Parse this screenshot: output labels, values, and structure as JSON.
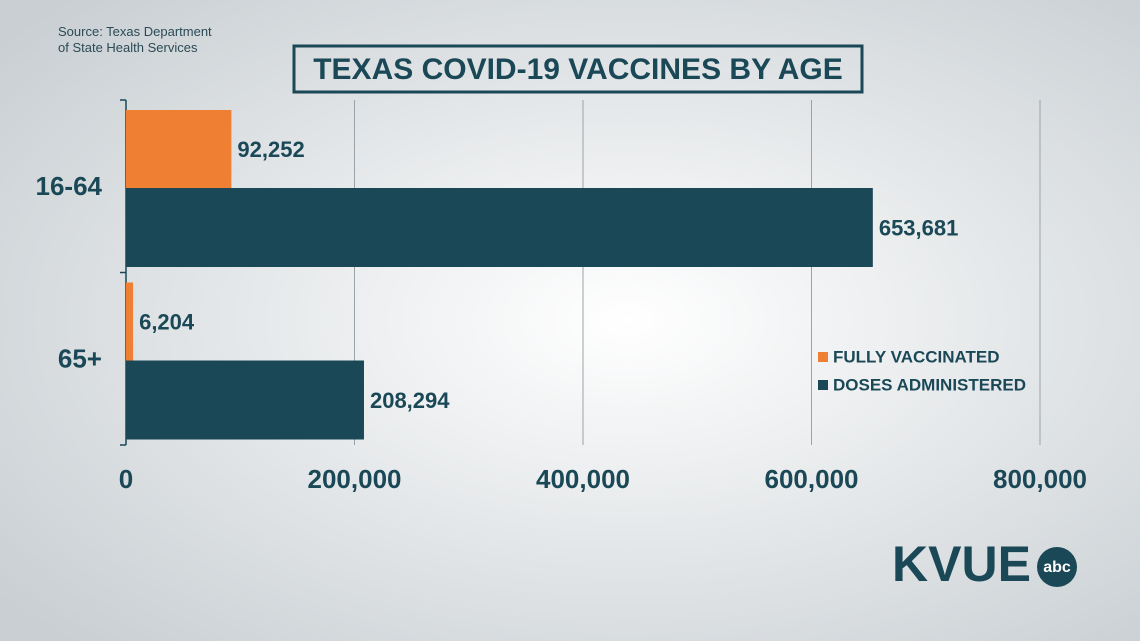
{
  "chart_data": {
    "type": "hbar",
    "title": "TEXAS COVID-19 VACCINES BY AGE",
    "source": "Source: Texas Department\nof State Health Services",
    "logo": "KVUE",
    "logo_badge": "abc",
    "categories": [
      "16-64",
      "65+"
    ],
    "series": [
      {
        "name": "FULLY VACCINATED",
        "color": "#ef7f33",
        "values": [
          92252,
          6204
        ],
        "value_labels": [
          "92,252",
          "6,204"
        ]
      },
      {
        "name": "DOSES ADMINISTERED",
        "color": "#1a4856",
        "values": [
          653681,
          208294
        ],
        "value_labels": [
          "653,681",
          "208,294"
        ]
      }
    ],
    "xlim": [
      0,
      800000
    ],
    "xticks": [
      0,
      {
        "value": 200000,
        "label": "200,000"
      },
      {
        "value": 400000,
        "label": "400,000"
      },
      {
        "value": 600000,
        "label": "600,000"
      },
      {
        "value": 800000,
        "label": "800,000"
      }
    ],
    "grid": true,
    "legend": "right"
  }
}
